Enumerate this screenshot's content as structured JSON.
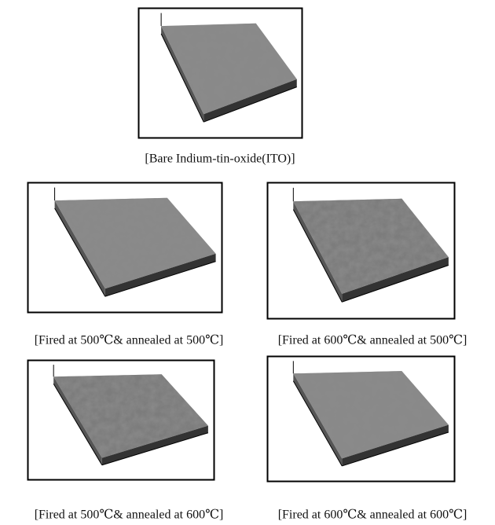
{
  "panels": [
    {
      "caption": "[Bare Indium-tin-oxide(ITO)]"
    },
    {
      "caption": "[Fired at 500℃& annealed at 500℃]"
    },
    {
      "caption": "[Fired at 600℃& annealed at 500℃]"
    },
    {
      "caption": "[Fired at 500℃& annealed at 600℃]"
    },
    {
      "caption": "[Fired at 600℃& annealed at 600℃]"
    }
  ]
}
